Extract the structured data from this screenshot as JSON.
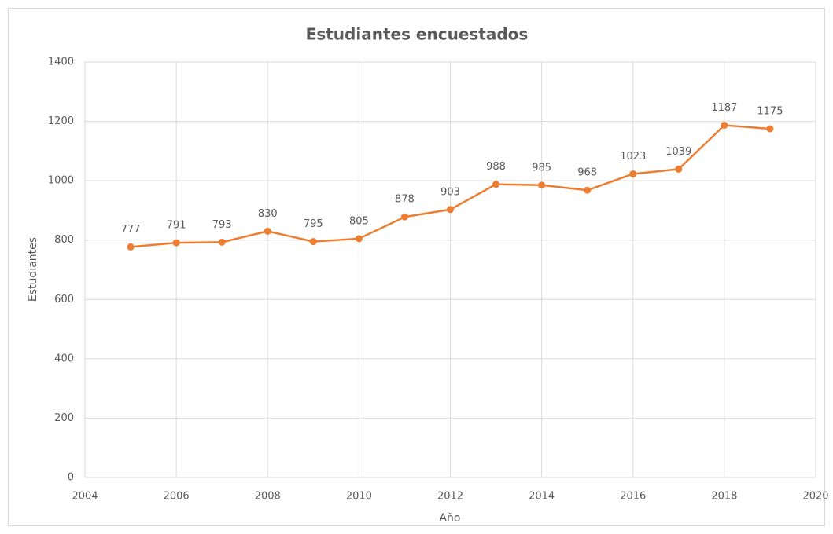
{
  "chart_data": {
    "type": "line",
    "title": "Estudiantes encuestados",
    "x_label": "Año",
    "y_label": "Estudiantes",
    "x": [
      2005,
      2006,
      2007,
      2008,
      2009,
      2010,
      2011,
      2012,
      2013,
      2014,
      2015,
      2016,
      2017,
      2018,
      2019
    ],
    "series": [
      {
        "name": "Estudiantes",
        "color": "#ed7d31",
        "values": [
          777,
          791,
          793,
          830,
          795,
          805,
          878,
          903,
          988,
          985,
          968,
          1023,
          1039,
          1187,
          1175
        ]
      }
    ],
    "xlim": [
      2004,
      2020
    ],
    "xticks": [
      2004,
      2006,
      2008,
      2010,
      2012,
      2014,
      2016,
      2018,
      2020
    ],
    "ylim": [
      0,
      1400
    ],
    "yticks": [
      0,
      200,
      400,
      600,
      800,
      1000,
      1200,
      1400
    ],
    "grid": true,
    "data_labels": true
  }
}
